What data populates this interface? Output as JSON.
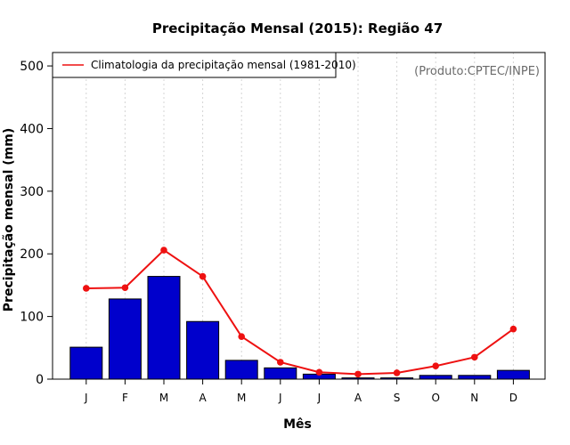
{
  "chart_data": {
    "type": "bar",
    "title": "Precipitação Mensal (2015): Região 47",
    "xlabel": "Mês",
    "ylabel": "Precipitação mensal (mm)",
    "categories": [
      "J",
      "F",
      "M",
      "A",
      "M",
      "J",
      "J",
      "A",
      "S",
      "O",
      "N",
      "D"
    ],
    "ylim": [
      0,
      520
    ],
    "yticks": [
      0,
      100,
      200,
      300,
      400,
      500
    ],
    "series": [
      {
        "name": "Precipitação mensal (2015)",
        "type": "bar",
        "color": "#0000cc",
        "values": [
          51,
          128,
          164,
          92,
          30,
          18,
          8,
          2,
          2,
          6,
          6,
          14
        ]
      },
      {
        "name": "Climatologia da precipitação mensal (1981-2010)",
        "type": "line",
        "color": "#ee1111",
        "values": [
          145,
          146,
          206,
          164,
          68,
          27,
          11,
          8,
          10,
          21,
          35,
          80
        ]
      }
    ],
    "legend": {
      "position": "top-left",
      "entries": [
        "Climatologia da precipitação mensal (1981-2010)"
      ]
    },
    "annotation": "(Produto:CPTEC/INPE)",
    "grid": "vertical-dotted"
  }
}
